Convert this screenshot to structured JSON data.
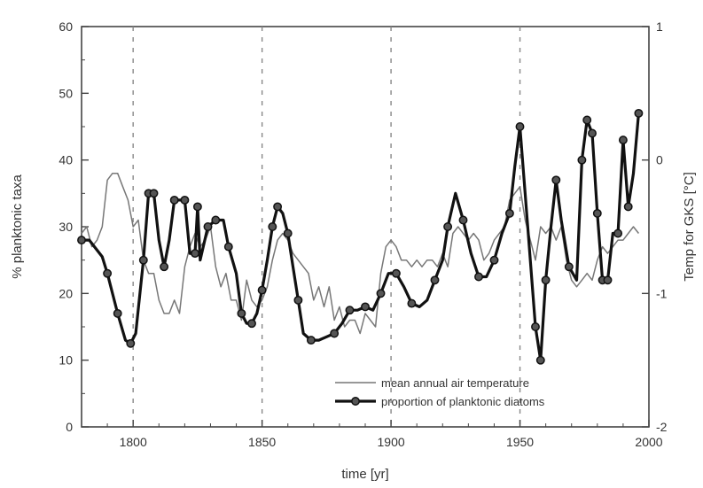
{
  "chart_data": {
    "type": "line",
    "title": "",
    "xlabel": "time [yr]",
    "ylabel_left": "% planktonic taxa",
    "ylabel_right": "Temp for GKS [°C]",
    "xlim": [
      1780,
      2000
    ],
    "ylim_left": [
      0,
      60
    ],
    "ylim_right": [
      -2,
      1
    ],
    "x_ticks": [
      1800,
      1850,
      1900,
      1950,
      2000
    ],
    "y_left_ticks": [
      0,
      10,
      20,
      30,
      40,
      50,
      60
    ],
    "y_right_ticks": [
      -2,
      -1,
      0,
      1
    ],
    "vertical_reference_lines": [
      1800,
      1850,
      1900,
      1950
    ],
    "grid": false,
    "legend_position": "bottom-right",
    "series": [
      {
        "name": "mean annual air temperature",
        "axis": "right",
        "style": "thin-line",
        "color": "#777777",
        "x": [
          1780,
          1782,
          1784,
          1786,
          1788,
          1790,
          1792,
          1794,
          1796,
          1798,
          1800,
          1802,
          1804,
          1806,
          1808,
          1810,
          1812,
          1814,
          1816,
          1818,
          1820,
          1822,
          1824,
          1826,
          1828,
          1830,
          1832,
          1834,
          1836,
          1838,
          1840,
          1842,
          1844,
          1846,
          1848,
          1850,
          1852,
          1854,
          1856,
          1858,
          1860,
          1862,
          1864,
          1866,
          1868,
          1870,
          1872,
          1874,
          1876,
          1878,
          1880,
          1882,
          1884,
          1886,
          1888,
          1890,
          1892,
          1894,
          1896,
          1898,
          1900,
          1902,
          1904,
          1906,
          1908,
          1910,
          1912,
          1914,
          1916,
          1918,
          1920,
          1922,
          1924,
          1926,
          1928,
          1930,
          1932,
          1934,
          1936,
          1938,
          1940,
          1942,
          1944,
          1946,
          1948,
          1950,
          1952,
          1954,
          1956,
          1958,
          1960,
          1962,
          1964,
          1966,
          1968,
          1970,
          1972,
          1974,
          1976,
          1978,
          1980,
          1982,
          1984,
          1986,
          1988,
          1990,
          1992,
          1994,
          1996
        ],
        "y": [
          -0.55,
          -0.5,
          -0.65,
          -0.6,
          -0.5,
          -0.15,
          -0.1,
          -0.1,
          -0.2,
          -0.3,
          -0.5,
          -0.45,
          -0.75,
          -0.85,
          -0.85,
          -1.05,
          -1.15,
          -1.15,
          -1.05,
          -1.15,
          -0.8,
          -0.65,
          -0.55,
          -0.65,
          -0.6,
          -0.5,
          -0.8,
          -0.95,
          -0.85,
          -1.05,
          -1.05,
          -1.2,
          -0.9,
          -1.05,
          -1.1,
          -1.05,
          -0.95,
          -0.75,
          -0.6,
          -0.55,
          -0.6,
          -0.7,
          -0.75,
          -0.8,
          -0.85,
          -1.05,
          -0.95,
          -1.1,
          -0.95,
          -1.2,
          -1.1,
          -1.25,
          -1.2,
          -1.2,
          -1.3,
          -1.15,
          -1.2,
          -1.25,
          -0.85,
          -0.65,
          -0.6,
          -0.65,
          -0.75,
          -0.75,
          -0.8,
          -0.75,
          -0.8,
          -0.75,
          -0.75,
          -0.8,
          -0.7,
          -0.8,
          -0.55,
          -0.5,
          -0.55,
          -0.6,
          -0.55,
          -0.6,
          -0.75,
          -0.7,
          -0.6,
          -0.55,
          -0.5,
          -0.3,
          -0.25,
          -0.2,
          -0.45,
          -0.6,
          -0.75,
          -0.5,
          -0.55,
          -0.5,
          -0.6,
          -0.5,
          -0.75,
          -0.9,
          -0.95,
          -0.9,
          -0.85,
          -0.9,
          -0.75,
          -0.65,
          -0.7,
          -0.65,
          -0.6,
          -0.6,
          -0.55,
          -0.5,
          -0.55
        ]
      },
      {
        "name": "proportion of planktonic diatoms",
        "axis": "left",
        "style": "thick-line-markers",
        "color": "#111111",
        "x": [
          1780,
          1783,
          1788,
          1790,
          1794,
          1797,
          1799,
          1801,
          1804,
          1806,
          1808,
          1810,
          1812,
          1814,
          1816,
          1818,
          1820,
          1822,
          1824,
          1825,
          1826,
          1829,
          1832,
          1835,
          1837,
          1840,
          1842,
          1844,
          1846,
          1848,
          1850,
          1852,
          1854,
          1856,
          1858,
          1860,
          1862,
          1864,
          1866,
          1869,
          1872,
          1875,
          1878,
          1881,
          1884,
          1887,
          1890,
          1893,
          1896,
          1899,
          1902,
          1905,
          1908,
          1911,
          1914,
          1917,
          1920,
          1922,
          1925,
          1928,
          1931,
          1934,
          1937,
          1940,
          1943,
          1946,
          1948,
          1950,
          1953,
          1956,
          1958,
          1960,
          1962,
          1964,
          1966,
          1969,
          1972,
          1974,
          1976,
          1978,
          1980,
          1982,
          1984,
          1986,
          1988,
          1990,
          1992,
          1994,
          1996
        ],
        "y": [
          28,
          28,
          25.5,
          23,
          17,
          13,
          12.5,
          14,
          25,
          35,
          35,
          28,
          24,
          28,
          34,
          34,
          34,
          26,
          26,
          33,
          25,
          30,
          31,
          31,
          27,
          23,
          17,
          15.5,
          15.5,
          17,
          20.5,
          25,
          30,
          33,
          32,
          29,
          24,
          19,
          14,
          13,
          13,
          13.5,
          14,
          15.5,
          17.5,
          17.5,
          18,
          17.5,
          20,
          23,
          23,
          21,
          18.5,
          18,
          19,
          22,
          25,
          30,
          35,
          31,
          26,
          22.5,
          22.5,
          25,
          29,
          32,
          39,
          45,
          30,
          15,
          10,
          22,
          30,
          37,
          31,
          24,
          22,
          40,
          46,
          44,
          32,
          22,
          22,
          29,
          29,
          43,
          33,
          38,
          47
        ]
      }
    ]
  }
}
